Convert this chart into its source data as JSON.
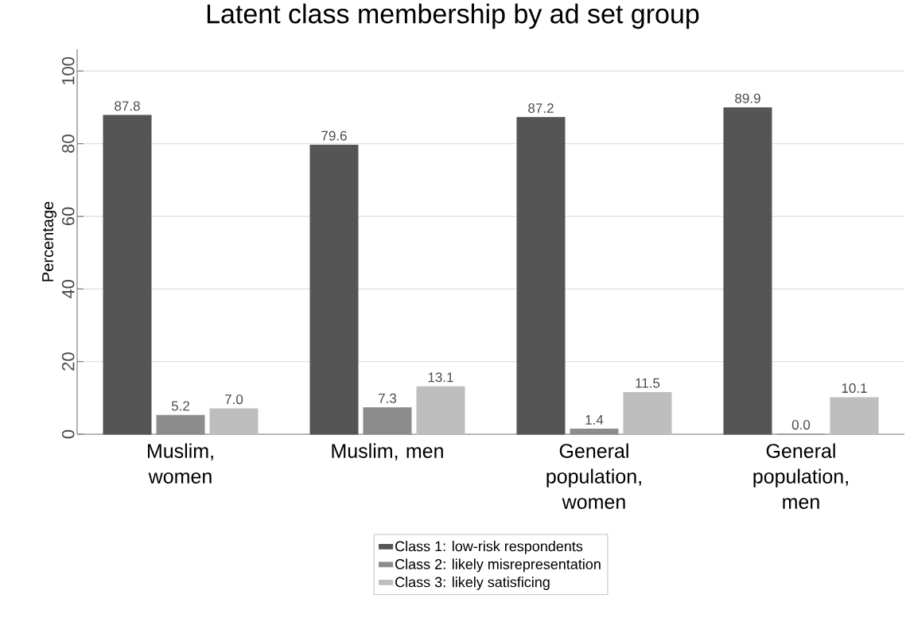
{
  "chart_data": {
    "type": "bar",
    "title": "Latent class membership by ad set group",
    "ylabel": "Percentage",
    "categories": [
      "Muslim, women",
      "Muslim, men",
      "General population, women",
      "General population, men"
    ],
    "series": [
      {
        "name": "Class 1: low-risk respondents",
        "color": "#555555",
        "values": [
          87.8,
          79.6,
          87.2,
          89.9
        ],
        "value_labels": [
          "87.8",
          "79.6",
          "87.2",
          "89.9"
        ]
      },
      {
        "name": "Class 2: likely misrepresentation",
        "color": "#8c8c8c",
        "values": [
          5.2,
          7.3,
          1.4,
          0.0
        ],
        "value_labels": [
          "5.2",
          "7.3",
          "1.4",
          "0.0"
        ]
      },
      {
        "name": "Class 3: likely satisficing",
        "color": "#bebebe",
        "values": [
          7.0,
          13.1,
          11.5,
          10.1
        ],
        "value_labels": [
          "7.0",
          "13.1",
          "11.5",
          "10.1"
        ]
      }
    ],
    "ylim": [
      0,
      106
    ],
    "yticks": [
      0,
      20,
      40,
      60,
      80,
      100
    ],
    "grid": "y",
    "legend": "bottom"
  }
}
